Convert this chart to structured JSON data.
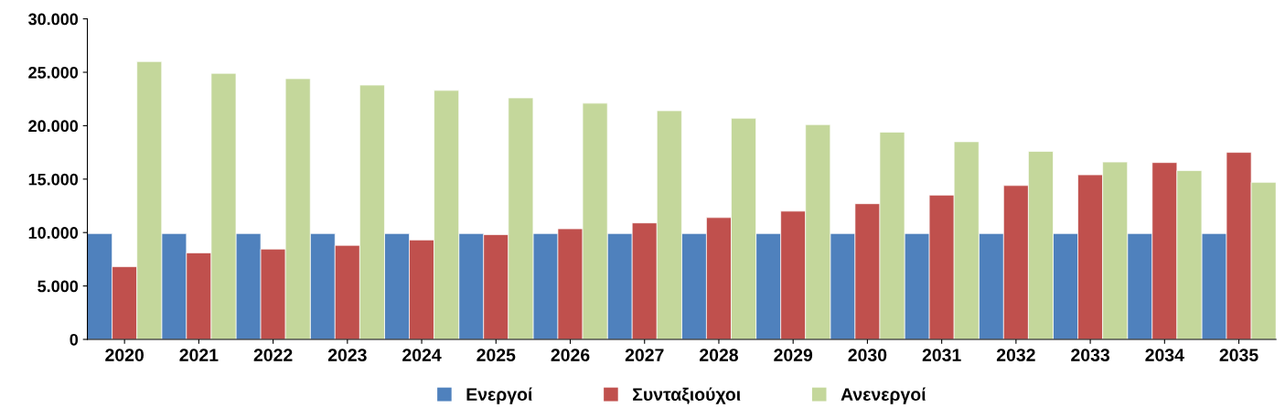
{
  "chart_data": {
    "type": "bar",
    "categories": [
      "2020",
      "2021",
      "2022",
      "2023",
      "2024",
      "2025",
      "2026",
      "2027",
      "2028",
      "2029",
      "2030",
      "2031",
      "2032",
      "2033",
      "2034",
      "2035"
    ],
    "series": [
      {
        "name": "Ενεργοί",
        "color": "#4f81bd",
        "values": [
          9900,
          9900,
          9900,
          9900,
          9900,
          9900,
          9900,
          9900,
          9900,
          9900,
          9900,
          9900,
          9900,
          9900,
          9900,
          9900
        ]
      },
      {
        "name": "Συνταξιούχοι",
        "color": "#c0504d",
        "values": [
          6800,
          8100,
          8450,
          8800,
          9300,
          9800,
          10350,
          10900,
          11400,
          12000,
          12700,
          13500,
          14400,
          15400,
          16550,
          17500
        ]
      },
      {
        "name": "Ανενεργοί",
        "color": "#c4d79b",
        "values": [
          26000,
          24900,
          24400,
          23800,
          23300,
          22600,
          22100,
          21400,
          20700,
          20100,
          19400,
          18500,
          17600,
          16600,
          15800,
          14700
        ]
      }
    ],
    "ylim": [
      0,
      30000
    ],
    "yticks": [
      {
        "value": 0,
        "label": "0"
      },
      {
        "value": 5000,
        "label": "5.000"
      },
      {
        "value": 10000,
        "label": "10.000"
      },
      {
        "value": 15000,
        "label": "15.000"
      },
      {
        "value": 20000,
        "label": "20.000"
      },
      {
        "value": 25000,
        "label": "25.000"
      },
      {
        "value": 30000,
        "label": "30.000"
      }
    ],
    "grid": false,
    "legend": "bottom"
  }
}
